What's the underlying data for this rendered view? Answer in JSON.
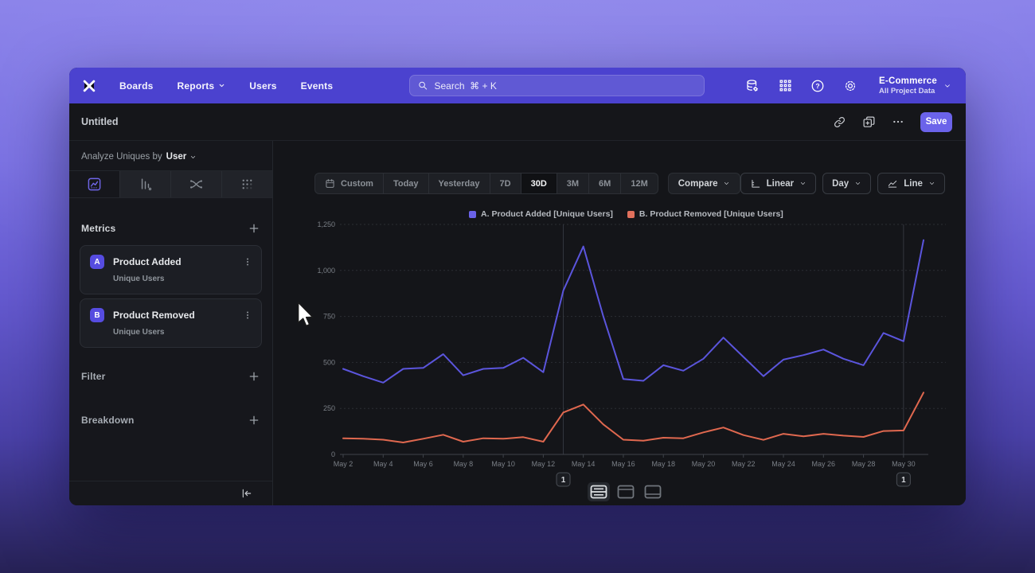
{
  "nav": {
    "items": [
      "Boards",
      "Reports",
      "Users",
      "Events"
    ],
    "search_placeholder": "Search  ⌘ + K",
    "help_glyph": "?",
    "project": {
      "name": "E-Commerce",
      "scope": "All Project Data"
    }
  },
  "titlebar": {
    "title": "Untitled",
    "save_label": "Save"
  },
  "sidebar": {
    "analyze_prefix": "Analyze Uniques by",
    "analyze_value": "User",
    "metrics_label": "Metrics",
    "metrics": [
      {
        "badge": "A",
        "name": "Product Added",
        "sub": "Unique Users"
      },
      {
        "badge": "B",
        "name": "Product Removed",
        "sub": "Unique Users"
      }
    ],
    "filter_label": "Filter",
    "breakdown_label": "Breakdown"
  },
  "toolbar": {
    "ranges": [
      "Custom",
      "Today",
      "Yesterday",
      "7D",
      "30D",
      "3M",
      "6M",
      "12M"
    ],
    "selected_range": "30D",
    "compare_label": "Compare",
    "scale_label": "Linear",
    "interval_label": "Day",
    "chart_type_label": "Line"
  },
  "legend": [
    {
      "label": "A. Product Added [Unique Users]",
      "color": "#6A62E8"
    },
    {
      "label": "B. Product Removed [Unique Users]",
      "color": "#E0705C"
    }
  ],
  "chart_data": {
    "type": "line",
    "title": "",
    "x": [
      "May 2",
      "May 3",
      "May 4",
      "May 5",
      "May 6",
      "May 7",
      "May 8",
      "May 9",
      "May 10",
      "May 11",
      "May 12",
      "May 13",
      "May 14",
      "May 15",
      "May 16",
      "May 17",
      "May 18",
      "May 19",
      "May 20",
      "May 21",
      "May 22",
      "May 23",
      "May 24",
      "May 25",
      "May 26",
      "May 27",
      "May 28",
      "May 29",
      "May 30",
      "May 31"
    ],
    "series": [
      {
        "name": "A. Product Added [Unique Users]",
        "color": "#5B55DD",
        "values": [
          465,
          425,
          390,
          465,
          470,
          545,
          430,
          465,
          470,
          525,
          447,
          890,
          1130,
          750,
          410,
          400,
          485,
          455,
          520,
          635,
          530,
          425,
          515,
          540,
          570,
          520,
          485,
          660,
          615,
          1165
        ]
      },
      {
        "name": "B. Product Removed [Unique Users]",
        "color": "#E0684F",
        "values": [
          88,
          85,
          80,
          65,
          85,
          107,
          69,
          88,
          85,
          94,
          69,
          228,
          271,
          163,
          80,
          75,
          91,
          88,
          120,
          146,
          105,
          79,
          112,
          98,
          112,
          102,
          95,
          127,
          130,
          336
        ]
      }
    ],
    "ylim": [
      0,
      1250
    ],
    "yticks": [
      0,
      250,
      500,
      750,
      1000,
      1250
    ],
    "ytick_labels": [
      "0",
      "250",
      "500",
      "750",
      "1,000",
      "1,250"
    ],
    "xtick_every": 2,
    "grid": "horizontal-dashed",
    "legend_position": "top-center",
    "annotations": [
      {
        "x": "May 13",
        "label": "1"
      },
      {
        "x": "May 30",
        "label": "1"
      }
    ]
  }
}
